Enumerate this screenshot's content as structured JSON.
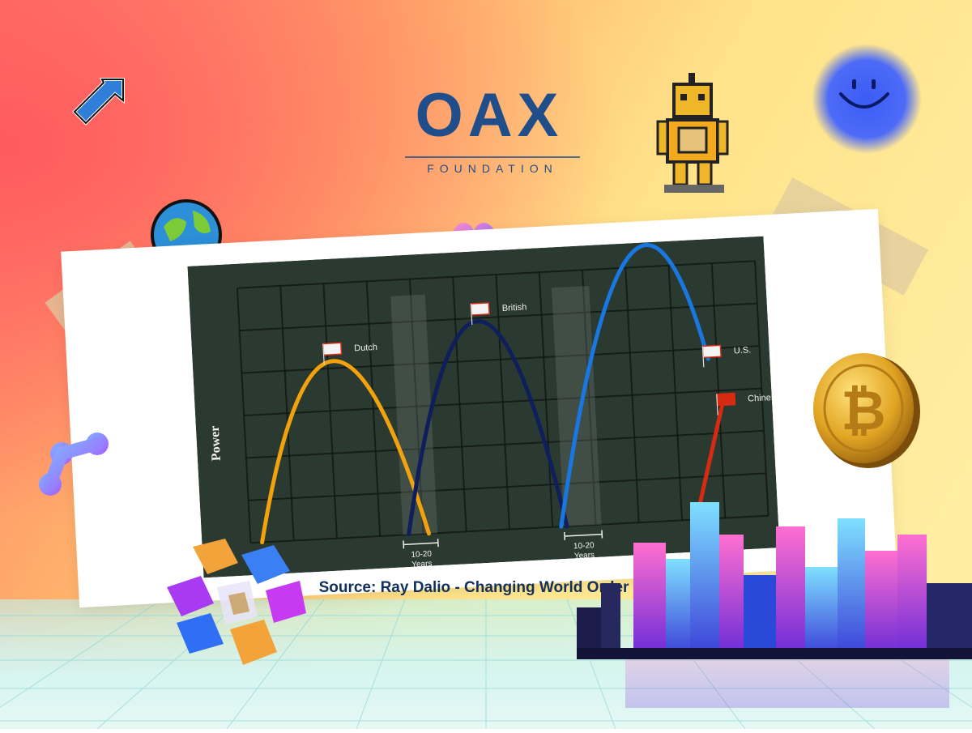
{
  "brand": {
    "logo_text": "OAX",
    "tagline": "FOUNDATION",
    "color": "#1f4e8a"
  },
  "caption": "Source: Ray Dalio - Changing World Order",
  "chart_data": {
    "type": "line",
    "ylabel": "Power",
    "xlabel": "",
    "series": [
      {
        "name": "Dutch",
        "color": "#f2a20c",
        "start": 0.4,
        "peak_x": 3.1,
        "peak": 6.6,
        "end": 6.2
      },
      {
        "name": "British",
        "color": "#0e1f5c",
        "start": 5.5,
        "peak_x": 8.3,
        "peak": 7.8,
        "end": 11.0
      },
      {
        "name": "U.S.",
        "color": "#1877e0",
        "start": 10.8,
        "peak_x": 13.9,
        "peak": 8.5,
        "end": 16.2
      },
      {
        "name": "Chinese",
        "color": "#d62a12",
        "start": 15.5,
        "peak_x": 16.6,
        "peak": 4.2,
        "end": 16.6
      }
    ],
    "transitions": [
      {
        "label": "10-20 Years",
        "from": 5.3,
        "to": 6.5
      },
      {
        "label": "10-20 Years",
        "from": 10.9,
        "to": 12.2
      }
    ],
    "xlim": [
      0,
      18
    ],
    "ylim": [
      0,
      9.5
    ],
    "grid": true
  }
}
